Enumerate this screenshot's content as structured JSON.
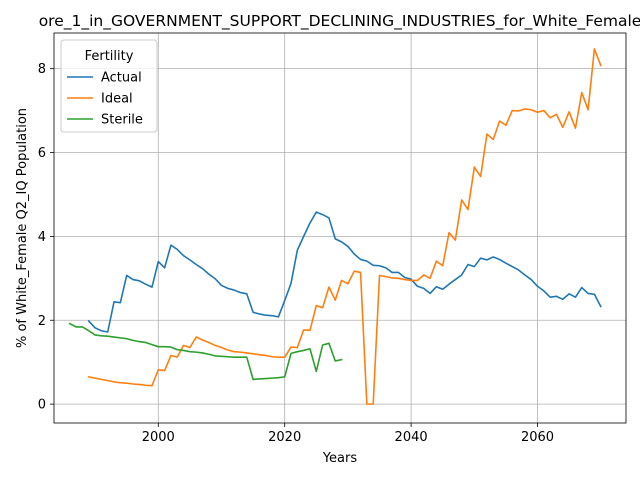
{
  "chart_data": {
    "type": "line",
    "title": "ore_1_in_GOVERNMENT_SUPPORT_DECLINING_INDUSTRIES_for_White_Female",
    "xlabel": "Years",
    "ylabel": "% of White_Female Q2_IQ Population",
    "xlim": [
      1983.5,
      2074
    ],
    "ylim": [
      -0.45,
      8.85
    ],
    "xticks": [
      2000,
      2020,
      2040,
      2060
    ],
    "yticks": [
      0,
      2,
      4,
      6,
      8
    ],
    "grid": true,
    "legend": {
      "title": "Fertility",
      "placement": "top-left"
    },
    "series": [
      {
        "name": "Actual",
        "color": "#1f77b4",
        "points": [
          [
            1989,
            1.98
          ],
          [
            1990,
            1.82
          ],
          [
            1991,
            1.75
          ],
          [
            1992,
            1.72
          ],
          [
            1993,
            2.44
          ],
          [
            1994,
            2.42
          ],
          [
            1995,
            3.07
          ],
          [
            1996,
            2.97
          ],
          [
            1997,
            2.94
          ],
          [
            1998,
            2.86
          ],
          [
            1999,
            2.79
          ],
          [
            2000,
            3.4
          ],
          [
            2001,
            3.25
          ],
          [
            2002,
            3.79
          ],
          [
            2003,
            3.69
          ],
          [
            2004,
            3.54
          ],
          [
            2005,
            3.44
          ],
          [
            2006,
            3.33
          ],
          [
            2007,
            3.23
          ],
          [
            2008,
            3.1
          ],
          [
            2009,
            2.99
          ],
          [
            2010,
            2.83
          ],
          [
            2011,
            2.76
          ],
          [
            2012,
            2.72
          ],
          [
            2013,
            2.66
          ],
          [
            2014,
            2.63
          ],
          [
            2015,
            2.19
          ],
          [
            2016,
            2.15
          ],
          [
            2017,
            2.12
          ],
          [
            2018,
            2.11
          ],
          [
            2019,
            2.08
          ],
          [
            2020,
            2.47
          ],
          [
            2021,
            2.88
          ],
          [
            2022,
            3.67
          ],
          [
            2023,
            4.0
          ],
          [
            2024,
            4.32
          ],
          [
            2025,
            4.58
          ],
          [
            2026,
            4.52
          ],
          [
            2027,
            4.44
          ],
          [
            2028,
            3.94
          ],
          [
            2029,
            3.87
          ],
          [
            2030,
            3.76
          ],
          [
            2031,
            3.58
          ],
          [
            2032,
            3.45
          ],
          [
            2033,
            3.41
          ],
          [
            2034,
            3.31
          ],
          [
            2035,
            3.3
          ],
          [
            2036,
            3.25
          ],
          [
            2037,
            3.14
          ],
          [
            2038,
            3.14
          ],
          [
            2039,
            3.02
          ],
          [
            2040,
            2.98
          ],
          [
            2041,
            2.81
          ],
          [
            2042,
            2.76
          ],
          [
            2043,
            2.64
          ],
          [
            2044,
            2.8
          ],
          [
            2045,
            2.74
          ],
          [
            2046,
            2.86
          ],
          [
            2047,
            2.97
          ],
          [
            2048,
            3.08
          ],
          [
            2049,
            3.33
          ],
          [
            2050,
            3.28
          ],
          [
            2051,
            3.48
          ],
          [
            2052,
            3.44
          ],
          [
            2053,
            3.51
          ],
          [
            2054,
            3.45
          ],
          [
            2055,
            3.36
          ],
          [
            2056,
            3.28
          ],
          [
            2057,
            3.2
          ],
          [
            2058,
            3.08
          ],
          [
            2059,
            2.97
          ],
          [
            2060,
            2.81
          ],
          [
            2061,
            2.7
          ],
          [
            2062,
            2.55
          ],
          [
            2063,
            2.57
          ],
          [
            2064,
            2.5
          ],
          [
            2065,
            2.63
          ],
          [
            2066,
            2.55
          ],
          [
            2067,
            2.78
          ],
          [
            2068,
            2.64
          ],
          [
            2069,
            2.62
          ],
          [
            2070,
            2.33
          ]
        ]
      },
      {
        "name": "Ideal",
        "color": "#ff7f0e",
        "points": [
          [
            1989,
            0.65
          ],
          [
            1990,
            0.62
          ],
          [
            1991,
            0.59
          ],
          [
            1992,
            0.56
          ],
          [
            1993,
            0.53
          ],
          [
            1994,
            0.51
          ],
          [
            1995,
            0.5
          ],
          [
            1996,
            0.48
          ],
          [
            1997,
            0.47
          ],
          [
            1998,
            0.45
          ],
          [
            1999,
            0.44
          ],
          [
            2000,
            0.82
          ],
          [
            2001,
            0.8
          ],
          [
            2002,
            1.16
          ],
          [
            2003,
            1.12
          ],
          [
            2004,
            1.4
          ],
          [
            2005,
            1.35
          ],
          [
            2006,
            1.6
          ],
          [
            2007,
            1.53
          ],
          [
            2008,
            1.47
          ],
          [
            2009,
            1.4
          ],
          [
            2010,
            1.35
          ],
          [
            2011,
            1.29
          ],
          [
            2012,
            1.25
          ],
          [
            2013,
            1.24
          ],
          [
            2014,
            1.22
          ],
          [
            2015,
            1.2
          ],
          [
            2016,
            1.18
          ],
          [
            2017,
            1.16
          ],
          [
            2018,
            1.13
          ],
          [
            2019,
            1.12
          ],
          [
            2020,
            1.12
          ],
          [
            2021,
            1.36
          ],
          [
            2022,
            1.35
          ],
          [
            2023,
            1.77
          ],
          [
            2024,
            1.76
          ],
          [
            2025,
            2.35
          ],
          [
            2026,
            2.3
          ],
          [
            2027,
            2.79
          ],
          [
            2028,
            2.48
          ],
          [
            2029,
            2.95
          ],
          [
            2030,
            2.87
          ],
          [
            2031,
            3.17
          ],
          [
            2032,
            3.14
          ],
          [
            2033,
            0.0
          ],
          [
            2034,
            0.0
          ],
          [
            2035,
            3.07
          ],
          [
            2036,
            3.04
          ],
          [
            2037,
            3.01
          ],
          [
            2038,
            3.0
          ],
          [
            2039,
            2.97
          ],
          [
            2040,
            2.95
          ],
          [
            2041,
            2.95
          ],
          [
            2042,
            3.08
          ],
          [
            2043,
            3.0
          ],
          [
            2044,
            3.41
          ],
          [
            2045,
            3.3
          ],
          [
            2046,
            4.09
          ],
          [
            2047,
            3.91
          ],
          [
            2048,
            4.87
          ],
          [
            2049,
            4.64
          ],
          [
            2050,
            5.65
          ],
          [
            2051,
            5.43
          ],
          [
            2052,
            6.44
          ],
          [
            2053,
            6.31
          ],
          [
            2054,
            6.75
          ],
          [
            2055,
            6.65
          ],
          [
            2056,
            7.0
          ],
          [
            2057,
            6.99
          ],
          [
            2058,
            7.04
          ],
          [
            2059,
            7.02
          ],
          [
            2060,
            6.96
          ],
          [
            2061,
            7.0
          ],
          [
            2062,
            6.83
          ],
          [
            2063,
            6.91
          ],
          [
            2064,
            6.6
          ],
          [
            2065,
            6.97
          ],
          [
            2066,
            6.58
          ],
          [
            2067,
            7.43
          ],
          [
            2068,
            7.02
          ],
          [
            2069,
            8.47
          ],
          [
            2070,
            8.08
          ]
        ]
      },
      {
        "name": "Sterile",
        "color": "#2ca02c",
        "points": [
          [
            1986,
            1.92
          ],
          [
            1987,
            1.84
          ],
          [
            1988,
            1.84
          ],
          [
            1989,
            1.75
          ],
          [
            1990,
            1.65
          ],
          [
            1991,
            1.63
          ],
          [
            1992,
            1.62
          ],
          [
            1993,
            1.6
          ],
          [
            1994,
            1.58
          ],
          [
            1995,
            1.56
          ],
          [
            1996,
            1.52
          ],
          [
            1997,
            1.49
          ],
          [
            1998,
            1.47
          ],
          [
            1999,
            1.42
          ],
          [
            2000,
            1.37
          ],
          [
            2001,
            1.37
          ],
          [
            2002,
            1.36
          ],
          [
            2003,
            1.3
          ],
          [
            2004,
            1.28
          ],
          [
            2005,
            1.25
          ],
          [
            2006,
            1.24
          ],
          [
            2007,
            1.22
          ],
          [
            2008,
            1.19
          ],
          [
            2009,
            1.15
          ],
          [
            2010,
            1.14
          ],
          [
            2011,
            1.13
          ],
          [
            2012,
            1.12
          ],
          [
            2013,
            1.12
          ],
          [
            2014,
            1.12
          ],
          [
            2015,
            0.59
          ],
          [
            2016,
            0.6
          ],
          [
            2017,
            0.61
          ],
          [
            2018,
            0.62
          ],
          [
            2019,
            0.63
          ],
          [
            2020,
            0.65
          ],
          [
            2021,
            1.21
          ],
          [
            2022,
            1.25
          ],
          [
            2023,
            1.28
          ],
          [
            2024,
            1.32
          ],
          [
            2025,
            0.78
          ],
          [
            2026,
            1.41
          ],
          [
            2027,
            1.45
          ],
          [
            2028,
            1.03
          ],
          [
            2029,
            1.06
          ]
        ]
      }
    ]
  }
}
